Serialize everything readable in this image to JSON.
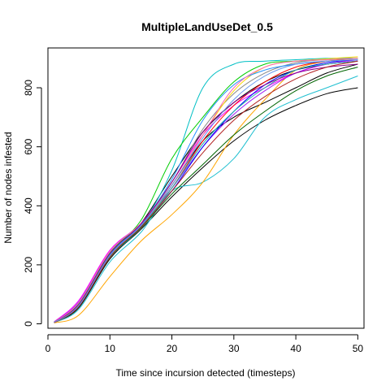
{
  "chart_data": {
    "type": "line",
    "title": "MultipleLandUseDet_0.5",
    "xlabel": "Time since incursion detected (timesteps)",
    "ylabel": "Number of nodes infested",
    "xlim": [
      0,
      51
    ],
    "ylim": [
      -15,
      935
    ],
    "xticks": [
      0,
      10,
      20,
      30,
      40,
      50
    ],
    "yticks": [
      0,
      200,
      400,
      600,
      800
    ],
    "x": [
      1,
      5,
      10,
      15,
      20,
      25,
      30,
      35,
      40,
      45,
      50
    ],
    "series": [
      {
        "color": "#000000",
        "values": [
          5,
          60,
          230,
          330,
          470,
          620,
          700,
          750,
          800,
          850,
          880
        ]
      },
      {
        "color": "#000000",
        "values": [
          4,
          55,
          220,
          320,
          430,
          530,
          620,
          690,
          740,
          780,
          800
        ]
      },
      {
        "color": "#000000",
        "values": [
          6,
          65,
          235,
          340,
          500,
          650,
          750,
          820,
          860,
          880,
          890
        ]
      },
      {
        "color": "#00bfc4",
        "values": [
          5,
          60,
          225,
          330,
          520,
          800,
          880,
          890,
          895,
          900,
          900
        ]
      },
      {
        "color": "#1fbfd0",
        "values": [
          4,
          50,
          210,
          310,
          450,
          480,
          560,
          700,
          760,
          800,
          840
        ]
      },
      {
        "color": "#ffa500",
        "values": [
          3,
          30,
          160,
          280,
          370,
          480,
          640,
          760,
          860,
          890,
          900
        ]
      },
      {
        "color": "#ff00ff",
        "values": [
          7,
          80,
          250,
          340,
          480,
          640,
          740,
          800,
          850,
          880,
          895
        ]
      },
      {
        "color": "#a020f0",
        "values": [
          6,
          75,
          245,
          340,
          460,
          600,
          710,
          790,
          850,
          880,
          890
        ]
      },
      {
        "color": "#ff0000",
        "values": [
          5,
          65,
          230,
          330,
          460,
          620,
          740,
          820,
          870,
          890,
          895
        ]
      },
      {
        "color": "#00cd00",
        "values": [
          6,
          70,
          240,
          350,
          560,
          700,
          820,
          880,
          890,
          895,
          900
        ]
      },
      {
        "color": "#0000ff",
        "values": [
          5,
          62,
          232,
          330,
          450,
          600,
          720,
          810,
          860,
          885,
          895
        ]
      },
      {
        "color": "#006400",
        "values": [
          4,
          58,
          225,
          325,
          440,
          540,
          640,
          720,
          790,
          840,
          870
        ]
      },
      {
        "color": "#888888",
        "values": [
          5,
          63,
          230,
          335,
          480,
          660,
          780,
          850,
          885,
          895,
          900
        ]
      },
      {
        "color": "#ffd700",
        "values": [
          5,
          60,
          228,
          330,
          470,
          640,
          790,
          870,
          890,
          898,
          905
        ]
      },
      {
        "color": "#1e90ff",
        "values": [
          5,
          64,
          236,
          335,
          490,
          690,
          810,
          860,
          880,
          890,
          895
        ]
      },
      {
        "color": "#ff69b4",
        "values": [
          6,
          72,
          245,
          340,
          470,
          640,
          800,
          870,
          890,
          895,
          900
        ]
      },
      {
        "color": "#20b2aa",
        "values": [
          5,
          61,
          230,
          330,
          460,
          610,
          720,
          800,
          860,
          880,
          890
        ]
      },
      {
        "color": "#8b008b",
        "values": [
          5,
          66,
          238,
          338,
          480,
          650,
          750,
          810,
          850,
          870,
          880
        ]
      },
      {
        "color": "#b22222",
        "values": [
          4,
          59,
          226,
          328,
          450,
          580,
          690,
          770,
          830,
          870,
          890
        ]
      },
      {
        "color": "#6495ed",
        "values": [
          5,
          62,
          232,
          332,
          470,
          630,
          760,
          840,
          880,
          890,
          895
        ]
      }
    ]
  }
}
